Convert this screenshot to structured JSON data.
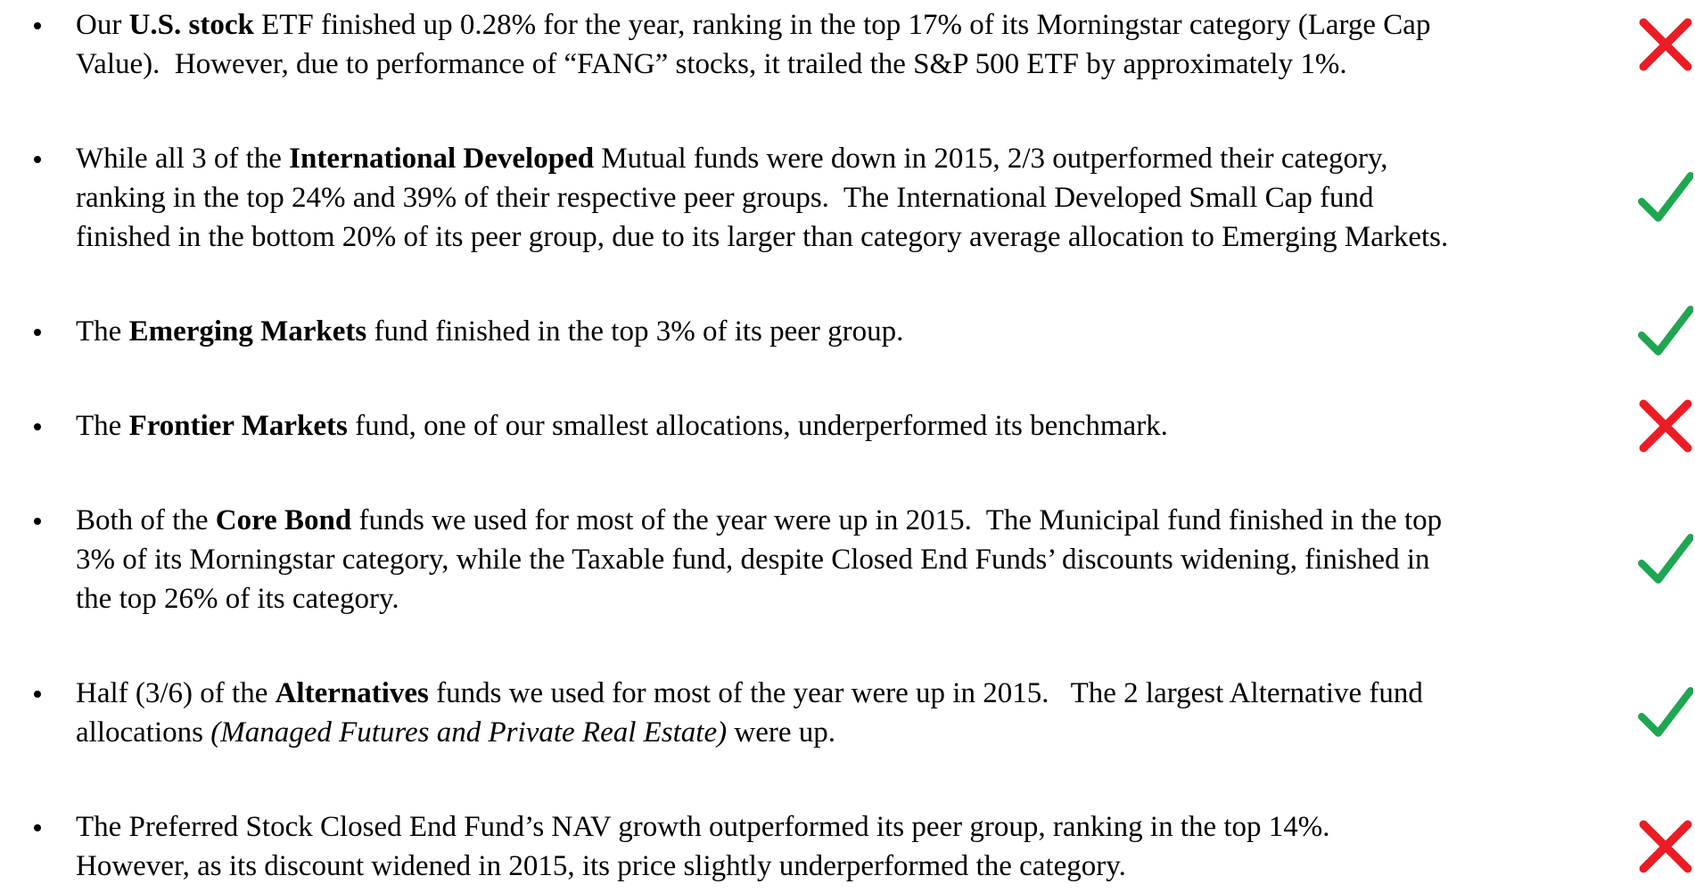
{
  "items": [
    {
      "status": "cross",
      "lines": [
        [
          {
            "text": "Our "
          },
          {
            "text": "U.S. stock",
            "bold": true
          },
          {
            "text": " ETF finished up 0.28% for the year, ranking in the top 17% of its Morningstar category (Large Cap"
          }
        ],
        [
          {
            "text": "Value).  However, due to performance of “FANG” stocks, it trailed the S&P 500 ETF by approximately 1%."
          }
        ]
      ]
    },
    {
      "status": "check",
      "lines": [
        [
          {
            "text": "While all 3 of the "
          },
          {
            "text": "International Developed",
            "bold": true
          },
          {
            "text": " Mutual funds were down in 2015, 2/3 outperformed their category,"
          }
        ],
        [
          {
            "text": "ranking in the top 24% and 39% of their respective peer groups.  The International Developed Small Cap fund"
          }
        ],
        [
          {
            "text": "finished in the bottom 20% of its peer group, due to its larger than category average allocation to Emerging Markets."
          }
        ]
      ]
    },
    {
      "status": "check",
      "lines": [
        [
          {
            "text": "The "
          },
          {
            "text": "Emerging Markets",
            "bold": true
          },
          {
            "text": " fund finished in the top 3% of its peer group."
          }
        ]
      ]
    },
    {
      "status": "cross",
      "lines": [
        [
          {
            "text": "The "
          },
          {
            "text": "Frontier Markets",
            "bold": true
          },
          {
            "text": " fund, one of our smallest allocations, underperformed its benchmark."
          }
        ]
      ]
    },
    {
      "status": "check",
      "lines": [
        [
          {
            "text": "Both of the "
          },
          {
            "text": "Core Bond",
            "bold": true
          },
          {
            "text": " funds we used for most of the year were up in 2015.  The Municipal fund finished in the top"
          }
        ],
        [
          {
            "text": "3% of its Morningstar category, while the Taxable fund, despite Closed End Funds’ discounts widening, finished in"
          }
        ],
        [
          {
            "text": "the top 26% of its category."
          }
        ]
      ]
    },
    {
      "status": "check",
      "lines": [
        [
          {
            "text": "Half (3/6) of the "
          },
          {
            "text": "Alternatives",
            "bold": true
          },
          {
            "text": " funds we used for most of the year were up in 2015.   The 2 largest Alternative fund"
          }
        ],
        [
          {
            "text": "allocations "
          },
          {
            "text": "(Managed Futures and Private Real Estate)",
            "italic": true
          },
          {
            "text": " were up."
          }
        ]
      ]
    },
    {
      "status": "cross",
      "lines": [
        [
          {
            "text": "The Preferred Stock Closed End Fund’s NAV growth outperformed its peer group, ranking in the top 14%."
          }
        ],
        [
          {
            "text": "However, as its discount widened in 2015, its price slightly underperformed the category."
          }
        ]
      ]
    }
  ]
}
